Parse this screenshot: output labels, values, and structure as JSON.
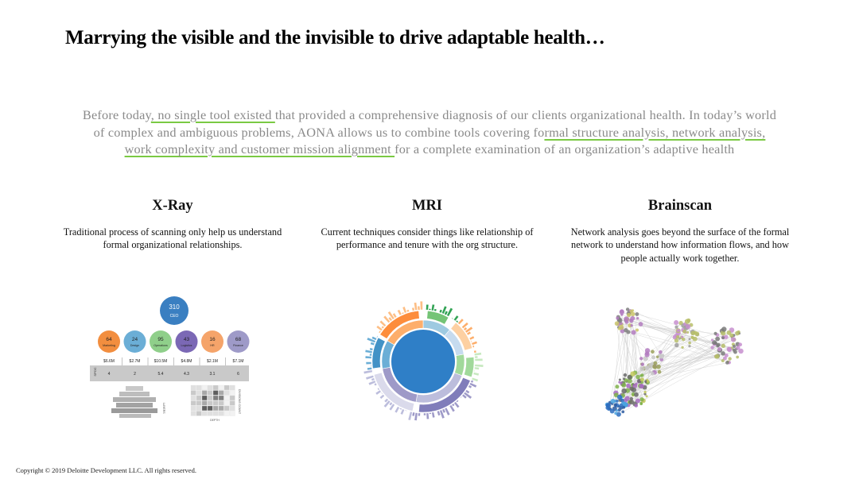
{
  "title": "Marrying the visible and the invisible to drive adaptable health…",
  "intro": {
    "t1": "Before today",
    "h1": ", no single tool existed ",
    "t2": "that provided a comprehensive diagnosis of our clients organizational health. In today’s world of complex and ambiguous problems, AONA allows us to combine tools covering fo",
    "h2": "rmal structure analysis, network analysis, work complexity and customer mission alignment ",
    "t3": "for a complete examination of an organization’s adaptive health"
  },
  "columns": [
    {
      "heading": "X-Ray",
      "text": "Traditional process of scanning only help us understand formal organizational relationships."
    },
    {
      "heading": "MRI",
      "text": "Current techniques consider things like relationship of performance and tenure with the org structure."
    },
    {
      "heading": "Brainscan",
      "text": "Network analysis goes beyond the surface of the formal network to understand how information flows, and how people actually work together."
    }
  ],
  "xray": {
    "ceo": {
      "value": "310",
      "label": "CEO"
    },
    "departments": [
      {
        "value": "64",
        "label": "Marketing",
        "color": "#f28e3f"
      },
      {
        "value": "24",
        "label": "Design",
        "color": "#6baed6"
      },
      {
        "value": "95",
        "label": "Operations",
        "color": "#8fcf8a"
      },
      {
        "value": "43",
        "label": "Logistics",
        "color": "#7b68b5"
      },
      {
        "value": "16",
        "label": "HR",
        "color": "#f5a46a"
      },
      {
        "value": "68",
        "label": "Finance",
        "color": "#9e9ac8"
      }
    ],
    "costs": [
      "$6.6M",
      "$2.7M",
      "$10.5M",
      "$4.8M",
      "$2.1M",
      "$7.1M"
    ],
    "spans": [
      "4",
      "2",
      "5.4",
      "4.3",
      "3.1",
      "6"
    ],
    "row_label": "SPOC",
    "axis_layers": "LAYERS",
    "axis_depth": "DEPTH",
    "axis_grid": "DIVISIONS COUNT"
  },
  "footer": "Copyright © 2019 Deloitte Development LLC. All rights reserved."
}
